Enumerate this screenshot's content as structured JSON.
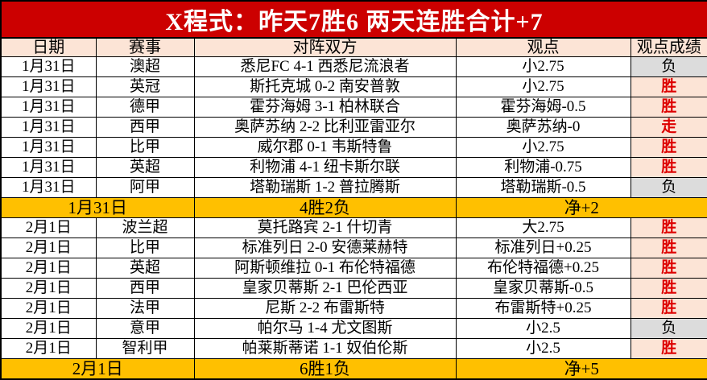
{
  "title": "X程式：昨天7胜6 两天连胜合计+7",
  "columns": [
    "日期",
    "赛事",
    "对阵双方",
    "观点",
    "观点成绩"
  ],
  "colors": {
    "title_bg": "#cc0000",
    "title_text": "#ffffff",
    "header_bg": "#fce4d6",
    "row_bg": "#ffffff",
    "win_bg": "#fce4d6",
    "win_text": "#dd0000",
    "loss_bg": "#dcdcdc",
    "loss_text": "#000000",
    "summary_bg": "#ffc000",
    "border": "#000000"
  },
  "sections": [
    {
      "rows": [
        {
          "date": "1月31日",
          "league": "澳超",
          "match": "悉尼FC 4-1 西悉尼流浪者",
          "pick": "小2.75",
          "result": "负",
          "result_type": "loss"
        },
        {
          "date": "1月31日",
          "league": "英冠",
          "match": "斯托克城 0-2 南安普敦",
          "pick": "小2.75",
          "result": "胜",
          "result_type": "win"
        },
        {
          "date": "1月31日",
          "league": "德甲",
          "match": "霍芬海姆 3-1 柏林联合",
          "pick": "霍芬海姆-0.5",
          "result": "胜",
          "result_type": "win"
        },
        {
          "date": "1月31日",
          "league": "西甲",
          "match": "奥萨苏纳 2-2 比利亚雷亚尔",
          "pick": "奥萨苏纳-0",
          "result": "走",
          "result_type": "push"
        },
        {
          "date": "1月31日",
          "league": "比甲",
          "match": "威尔郡 0-1 韦斯特鲁",
          "pick": "小2.75",
          "result": "胜",
          "result_type": "win"
        },
        {
          "date": "1月31日",
          "league": "英超",
          "match": "利物浦 4-1 纽卡斯尔联",
          "pick": "利物浦-0.75",
          "result": "胜",
          "result_type": "win"
        },
        {
          "date": "1月31日",
          "league": "阿甲",
          "match": "塔勒瑞斯 1-2 普拉腾斯",
          "pick": "塔勒瑞斯-0.5",
          "result": "负",
          "result_type": "loss"
        }
      ],
      "summary": {
        "date": "1月31日",
        "record": "4胜2负",
        "net": "净+2"
      }
    },
    {
      "rows": [
        {
          "date": "2月1日",
          "league": "波兰超",
          "match": "莫托路宾 2-1 什切青",
          "pick": "大2.75",
          "result": "胜",
          "result_type": "win"
        },
        {
          "date": "2月1日",
          "league": "比甲",
          "match": "标准列日 2-0 安德莱赫特",
          "pick": "标准列日+0.25",
          "result": "胜",
          "result_type": "win"
        },
        {
          "date": "2月1日",
          "league": "英超",
          "match": "阿斯顿维拉 0-1 布伦特福德",
          "pick": "布伦特福德+0.25",
          "result": "胜",
          "result_type": "win"
        },
        {
          "date": "2月1日",
          "league": "西甲",
          "match": "皇家贝蒂斯 2-1 巴伦西亚",
          "pick": "皇家贝蒂斯-0.5",
          "result": "胜",
          "result_type": "win"
        },
        {
          "date": "2月1日",
          "league": "法甲",
          "match": "尼斯 2-2 布雷斯特",
          "pick": "布雷斯特+0.25",
          "result": "胜",
          "result_type": "win"
        },
        {
          "date": "2月1日",
          "league": "意甲",
          "match": "帕尔马 1-4 尤文图斯",
          "pick": "小2.5",
          "result": "负",
          "result_type": "loss"
        },
        {
          "date": "2月1日",
          "league": "智利甲",
          "match": "帕莱斯蒂诺 1-1 奴伯伦斯",
          "pick": "小2.5",
          "result": "胜",
          "result_type": "win"
        }
      ],
      "summary": {
        "date": "2月1日",
        "record": "6胜1负",
        "net": "净+5"
      }
    }
  ]
}
